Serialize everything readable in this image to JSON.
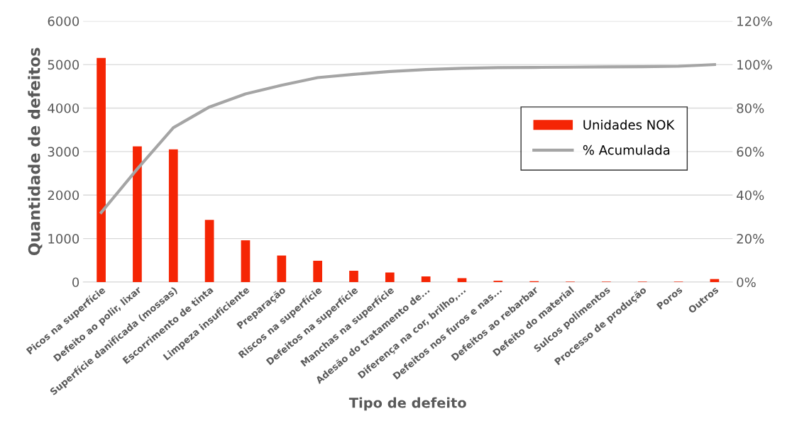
{
  "chart_data": {
    "type": "bar",
    "xlabel": "Tipo de defeito",
    "ylabel": "Quantidade de defeitos",
    "categories": [
      "Picos na superfície",
      "Defeito ao polir, lixar",
      "Superfície danificada (mossas)",
      "Escorrimento de tinta",
      "Limpeza insuficiente",
      "Preparação",
      "Riscos na superfície",
      "Defeitos na superfície",
      "Manchas na superfície",
      "Adesão do tratamento de...",
      "Diferença na cor, brilho,...",
      "Defeitos nos furos e nas...",
      "Defeitos ao rebarbar",
      "Defeito do material",
      "Sulcos polimentos",
      "Processo de produção",
      "Poros",
      "Outros"
    ],
    "series": [
      {
        "name": "Unidades NOK",
        "color": "#f52504",
        "values": [
          5150,
          3120,
          3050,
          1430,
          960,
          610,
          490,
          260,
          220,
          130,
          90,
          30,
          20,
          10,
          10,
          10,
          10,
          70
        ]
      },
      {
        "name": "% Acumulada",
        "type": "line",
        "axis": "y2",
        "color": "#a5a5a5",
        "values": [
          32,
          52,
          71,
          80.5,
          86.5,
          90.5,
          94,
          95.5,
          96.8,
          97.7,
          98.3,
          98.6,
          98.7,
          98.8,
          98.9,
          99,
          99.2,
          100
        ]
      }
    ],
    "ylim": [
      0,
      6000
    ],
    "yticks": [
      0,
      1000,
      2000,
      3000,
      4000,
      5000,
      6000
    ],
    "y2lim": [
      0,
      120
    ],
    "y2ticks": [
      {
        "value": 0,
        "label": "0%"
      },
      {
        "value": 20,
        "label": "20%"
      },
      {
        "value": 40,
        "label": "40%"
      },
      {
        "value": 60,
        "label": "60%"
      },
      {
        "value": 80,
        "label": "80%"
      },
      {
        "value": 100,
        "label": "100%"
      },
      {
        "value": 120,
        "label": "120%"
      }
    ],
    "grid": "y",
    "legend": "right",
    "marker": "none",
    "line_style": "solid"
  }
}
